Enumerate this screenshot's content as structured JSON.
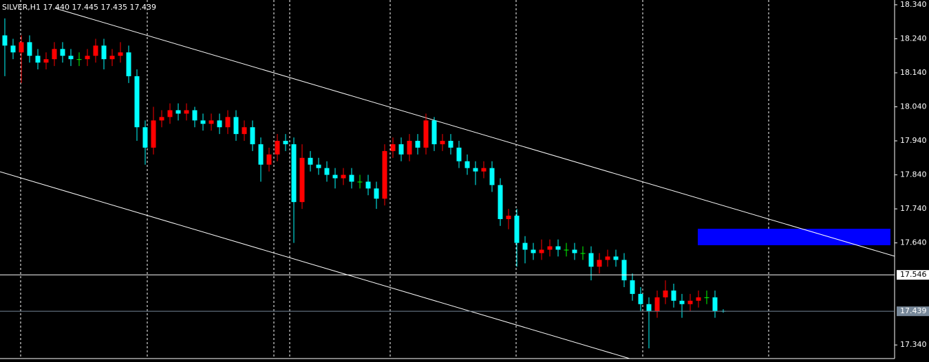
{
  "chart_data": {
    "type": "candlestick",
    "title": "SILVER,H1  17.440 17.445 17.435 17.439",
    "ylim": [
      17.3,
      18.354
    ],
    "yticks": [
      {
        "value": 18.34,
        "label": "18.340"
      },
      {
        "value": 18.24,
        "label": "18.240"
      },
      {
        "value": 18.14,
        "label": "18.140"
      },
      {
        "value": 18.04,
        "label": "18.040"
      },
      {
        "value": 17.94,
        "label": "17.940"
      },
      {
        "value": 17.84,
        "label": "17.840"
      },
      {
        "value": 17.74,
        "label": "17.740"
      },
      {
        "value": 17.64,
        "label": "17.640"
      },
      {
        "value": 17.34,
        "label": "17.340"
      }
    ],
    "levels": [
      17.546,
      17.439
    ],
    "up_color": "#ff0000",
    "down_color": "#00ffff",
    "flat_color": "#00ff00",
    "open": [
      18.25,
      18.22,
      18.2,
      18.23,
      18.19,
      18.17,
      18.18,
      18.21,
      18.19,
      18.18,
      18.18,
      18.19,
      18.22,
      18.18,
      18.19,
      18.2,
      18.13,
      17.98,
      17.92,
      18.0,
      18.01,
      18.03,
      18.02,
      18.03,
      18.0,
      17.99,
      18.0,
      17.98,
      18.01,
      17.96,
      17.98,
      17.93,
      17.87,
      17.9,
      17.94,
      17.93,
      17.76,
      17.89,
      17.87,
      17.86,
      17.84,
      17.83,
      17.84,
      17.82,
      17.82,
      17.8,
      17.77,
      17.91,
      17.93,
      17.9,
      17.94,
      17.92,
      18.0,
      17.93,
      17.94,
      17.92,
      17.88,
      17.86,
      17.85,
      17.86,
      17.81,
      17.71,
      17.72,
      17.64,
      17.62,
      17.61,
      17.62,
      17.63,
      17.62,
      17.62,
      17.61,
      17.61,
      17.57,
      17.59,
      17.6,
      17.59,
      17.53,
      17.49,
      17.46,
      17.44,
      17.48,
      17.5,
      17.47,
      17.46,
      17.47,
      17.48,
      17.48,
      17.44
    ],
    "high": [
      18.3,
      18.24,
      18.25,
      18.25,
      18.21,
      18.2,
      18.23,
      18.23,
      18.21,
      18.2,
      18.21,
      18.24,
      18.24,
      18.21,
      18.23,
      18.22,
      18.15,
      18.0,
      18.04,
      18.03,
      18.05,
      18.05,
      18.05,
      18.04,
      18.02,
      18.02,
      18.02,
      18.03,
      18.03,
      18.0,
      18.0,
      17.95,
      17.92,
      17.96,
      17.96,
      17.95,
      17.93,
      17.91,
      17.89,
      17.88,
      17.86,
      17.86,
      17.86,
      17.84,
      17.84,
      17.82,
      17.93,
      17.95,
      17.95,
      17.96,
      17.96,
      18.02,
      18.01,
      17.96,
      17.96,
      17.94,
      17.9,
      17.88,
      17.88,
      17.88,
      17.83,
      17.74,
      17.74,
      17.66,
      17.64,
      17.65,
      17.65,
      17.65,
      17.64,
      17.64,
      17.63,
      17.63,
      17.61,
      17.62,
      17.62,
      17.61,
      17.55,
      17.51,
      17.48,
      17.5,
      17.53,
      17.52,
      17.49,
      17.49,
      17.5,
      17.5,
      17.5,
      17.445
    ],
    "low": [
      18.13,
      18.18,
      18.11,
      18.17,
      18.15,
      18.15,
      18.16,
      18.17,
      18.16,
      18.16,
      18.16,
      18.17,
      18.15,
      18.16,
      18.17,
      18.11,
      17.94,
      17.87,
      17.9,
      17.98,
      17.99,
      18.0,
      18.0,
      17.98,
      17.97,
      17.97,
      17.96,
      17.96,
      17.94,
      17.94,
      17.91,
      17.82,
      17.85,
      17.88,
      17.91,
      17.64,
      17.74,
      17.85,
      17.84,
      17.82,
      17.8,
      17.81,
      17.8,
      17.8,
      17.78,
      17.74,
      17.75,
      17.89,
      17.88,
      17.88,
      17.9,
      17.9,
      17.91,
      17.91,
      17.9,
      17.86,
      17.84,
      17.81,
      17.83,
      17.79,
      17.69,
      17.68,
      17.57,
      17.58,
      17.59,
      17.59,
      17.6,
      17.6,
      17.6,
      17.59,
      17.59,
      17.53,
      17.55,
      17.57,
      17.57,
      17.51,
      17.47,
      17.44,
      17.33,
      17.42,
      17.46,
      17.45,
      17.42,
      17.44,
      17.45,
      17.46,
      17.42,
      17.435
    ],
    "close": [
      18.22,
      18.2,
      18.23,
      18.19,
      18.17,
      18.18,
      18.21,
      18.19,
      18.18,
      18.18,
      18.19,
      18.22,
      18.18,
      18.19,
      18.2,
      18.13,
      17.98,
      17.92,
      18.0,
      18.01,
      18.03,
      18.02,
      18.03,
      18.0,
      17.99,
      18.0,
      17.98,
      18.01,
      17.96,
      17.98,
      17.93,
      17.87,
      17.9,
      17.94,
      17.93,
      17.76,
      17.89,
      17.87,
      17.86,
      17.84,
      17.83,
      17.84,
      17.82,
      17.82,
      17.8,
      17.77,
      17.91,
      17.93,
      17.9,
      17.94,
      17.92,
      18.0,
      17.93,
      17.94,
      17.92,
      17.88,
      17.86,
      17.85,
      17.86,
      17.81,
      17.71,
      17.72,
      17.64,
      17.62,
      17.61,
      17.62,
      17.63,
      17.62,
      17.62,
      17.61,
      17.61,
      17.57,
      17.59,
      17.6,
      17.59,
      17.53,
      17.49,
      17.46,
      17.44,
      17.48,
      17.5,
      17.47,
      17.46,
      17.47,
      17.48,
      17.48,
      17.44,
      17.439
    ]
  }
}
